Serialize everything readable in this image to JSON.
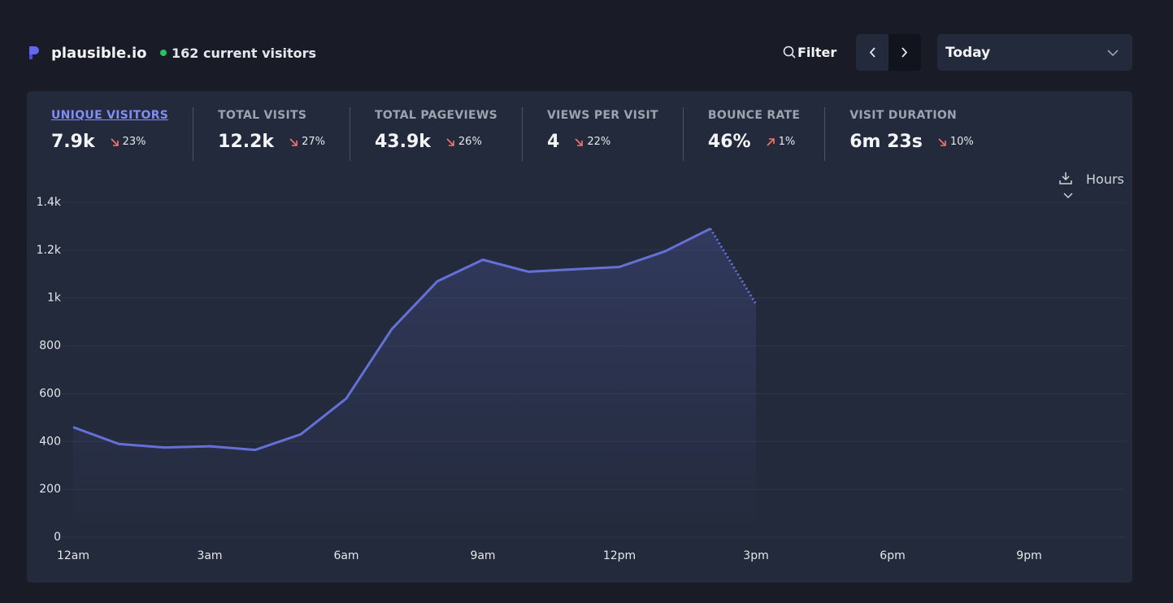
{
  "header": {
    "brand": "plausible.io",
    "current_visitors": "162 current visitors",
    "filter": "Filter",
    "period": "Today"
  },
  "stats": [
    {
      "label": "UNIQUE VISITORS",
      "value": "7.9k",
      "change": "23%",
      "trend": "down",
      "active": true
    },
    {
      "label": "TOTAL VISITS",
      "value": "12.2k",
      "change": "27%",
      "trend": "down",
      "active": false
    },
    {
      "label": "TOTAL PAGEVIEWS",
      "value": "43.9k",
      "change": "26%",
      "trend": "down",
      "active": false
    },
    {
      "label": "VIEWS PER VISIT",
      "value": "4",
      "change": "22%",
      "trend": "down",
      "active": false
    },
    {
      "label": "BOUNCE RATE",
      "value": "46%",
      "change": "1%",
      "trend": "up",
      "active": false
    },
    {
      "label": "VISIT DURATION",
      "value": "6m 23s",
      "change": "10%",
      "trend": "down",
      "active": false
    }
  ],
  "interval": "Hours",
  "chart_data": {
    "type": "line",
    "categories": [
      "12am",
      null,
      null,
      "3am",
      null,
      null,
      "6am",
      null,
      null,
      "9am",
      null,
      null,
      "12pm",
      null,
      null,
      "3pm",
      null,
      null,
      "6pm",
      null,
      null,
      "9pm",
      null,
      null
    ],
    "series": [
      {
        "color": "#6570d6",
        "values": [
          460,
          390,
          375,
          380,
          365,
          430,
          580,
          870,
          1070,
          1160,
          1110,
          1120,
          1130,
          1195,
          1290,
          975,
          null,
          null,
          null,
          null,
          null,
          null,
          null,
          null
        ]
      }
    ],
    "dashed_last_segment": true,
    "ylim": [
      0,
      1400
    ],
    "yticks": [
      0,
      200,
      400,
      600,
      800,
      {
        "value": 1000,
        "label": "1k"
      },
      {
        "value": 1200,
        "label": "1.2k"
      },
      {
        "value": 1400,
        "label": "1.4k"
      }
    ],
    "grid": true
  }
}
